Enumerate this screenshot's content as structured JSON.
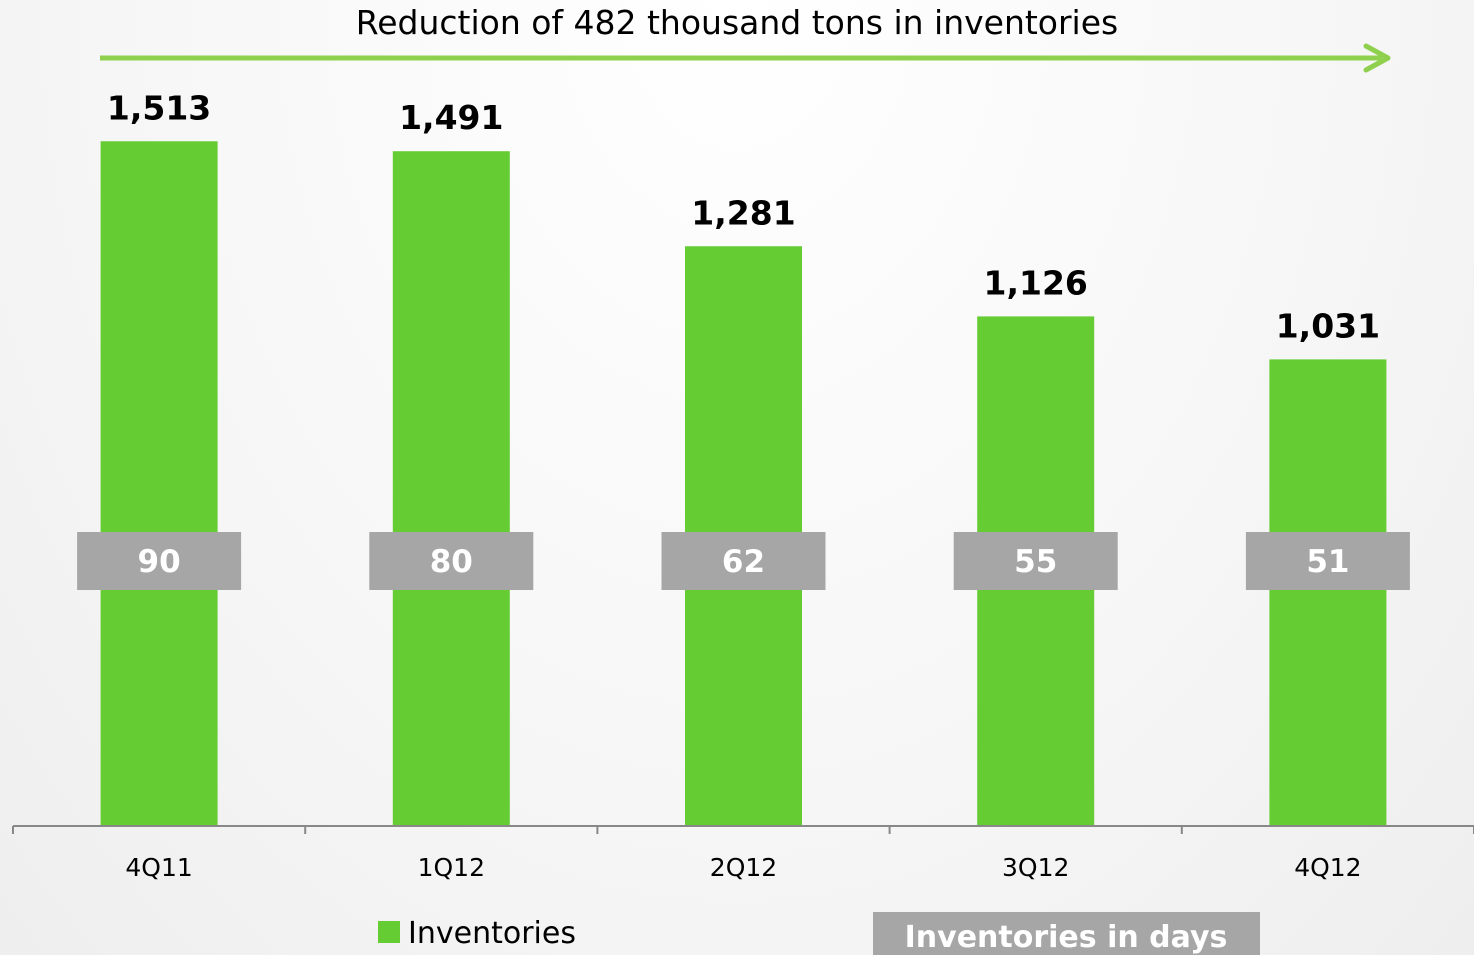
{
  "chart_data": {
    "type": "bar",
    "annotation": "Reduction of 482 thousand tons in inventories",
    "categories": [
      "4Q11",
      "1Q12",
      "2Q12",
      "3Q12",
      "4Q12"
    ],
    "series": [
      {
        "name": "Inventories",
        "values": [
          1513,
          1491,
          1281,
          1126,
          1031
        ],
        "value_labels": [
          "1,513",
          "1,491",
          "1,281",
          "1,126",
          "1,031"
        ],
        "color": "#66cc33"
      },
      {
        "name": "Inventories in days",
        "values": [
          90,
          80,
          62,
          55,
          51
        ],
        "color": "#a6a6a6"
      }
    ],
    "ylim": [
      0,
      1750
    ],
    "grid": false,
    "legend_position": "bottom",
    "arrow_color": "#8fd14f"
  }
}
